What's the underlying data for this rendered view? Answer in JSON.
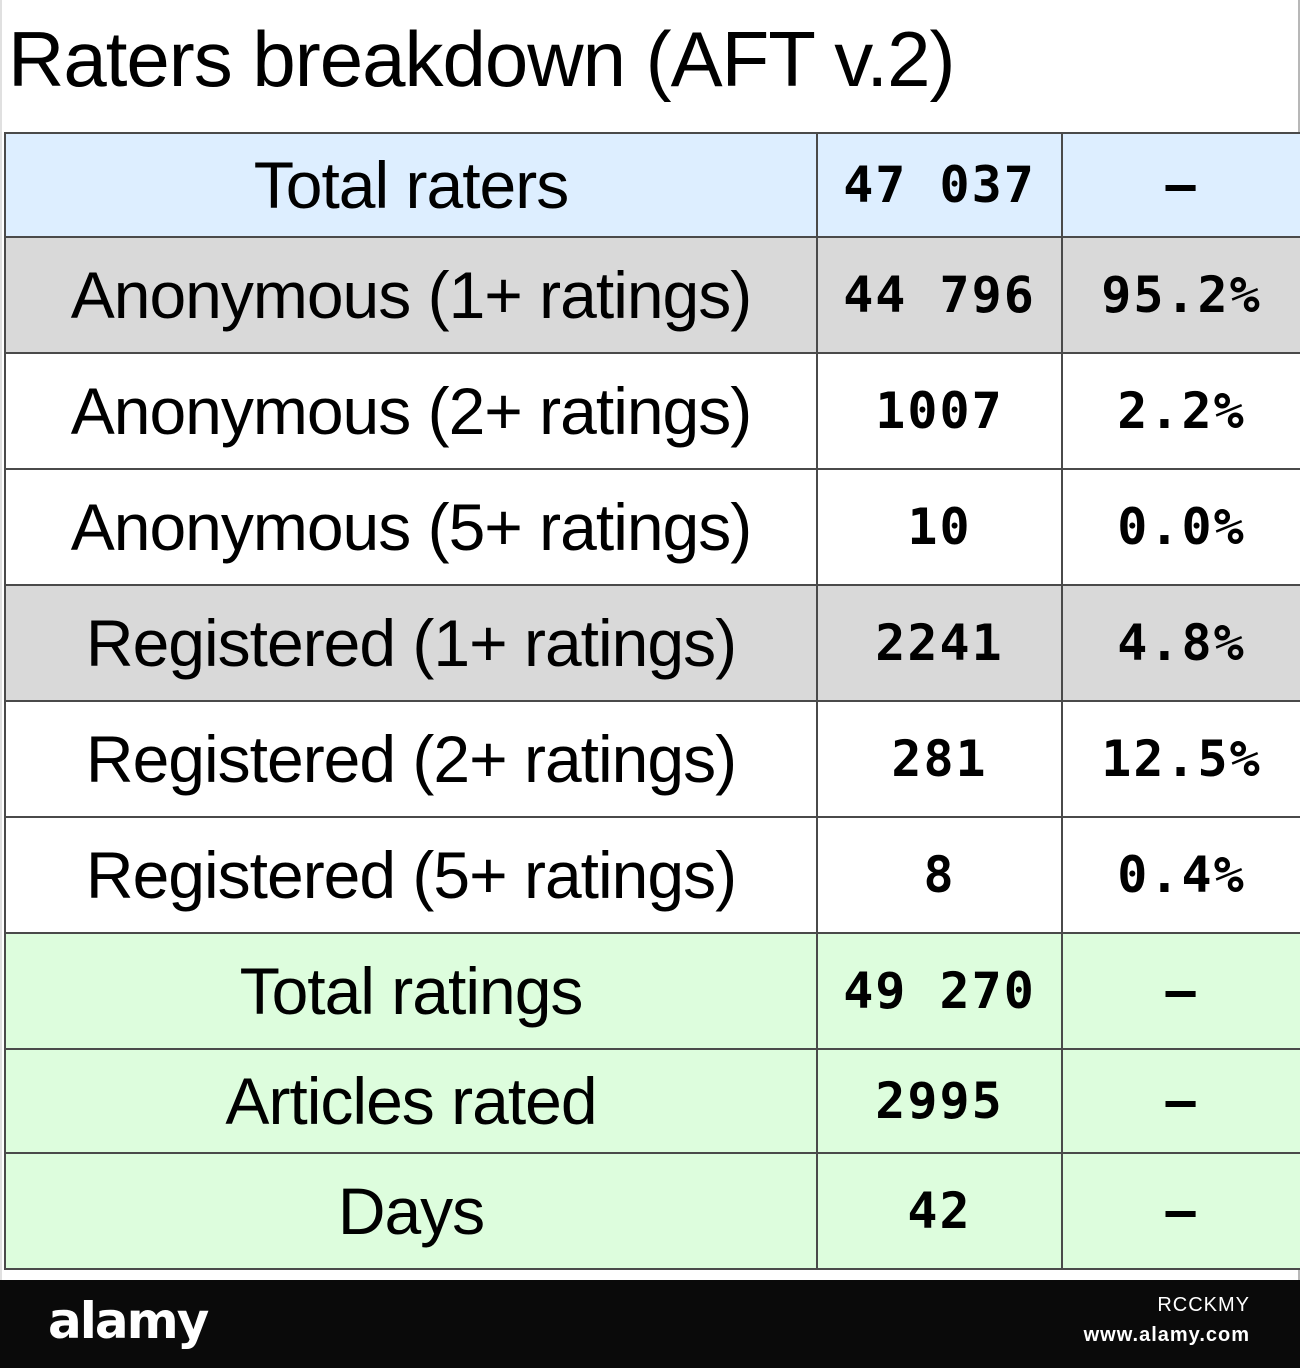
{
  "chart_data": {
    "type": "table",
    "title": "Raters breakdown (AFT v.2)",
    "rows": [
      {
        "label": "Total raters",
        "value": "47 037",
        "percent": "–",
        "style": "blue"
      },
      {
        "label": "Anonymous (1+ ratings)",
        "value": "44 796",
        "percent": "95.2%",
        "style": "gray"
      },
      {
        "label": "Anonymous (2+ ratings)",
        "value": "1007",
        "percent": "2.2%",
        "style": "white"
      },
      {
        "label": "Anonymous (5+ ratings)",
        "value": "10",
        "percent": "0.0%",
        "style": "white"
      },
      {
        "label": "Registered (1+ ratings)",
        "value": "2241",
        "percent": "4.8%",
        "style": "gray"
      },
      {
        "label": "Registered (2+ ratings)",
        "value": "281",
        "percent": "12.5%",
        "style": "white"
      },
      {
        "label": "Registered (5+ ratings)",
        "value": "8",
        "percent": "0.4%",
        "style": "white"
      },
      {
        "label": "Total ratings",
        "value": "49 270",
        "percent": "–",
        "style": "green"
      },
      {
        "label": "Articles rated",
        "value": "2995",
        "percent": "–",
        "style": "green"
      },
      {
        "label": "Days",
        "value": "42",
        "percent": "–",
        "style": "green"
      }
    ],
    "colors": {
      "blue": "#ddeeff",
      "gray": "#d9d9d9",
      "white": "#ffffff",
      "green": "#ddfddd"
    }
  },
  "footer": {
    "logo": "alamy",
    "image_id": "RCCKMY",
    "url": "www.alamy.com"
  }
}
